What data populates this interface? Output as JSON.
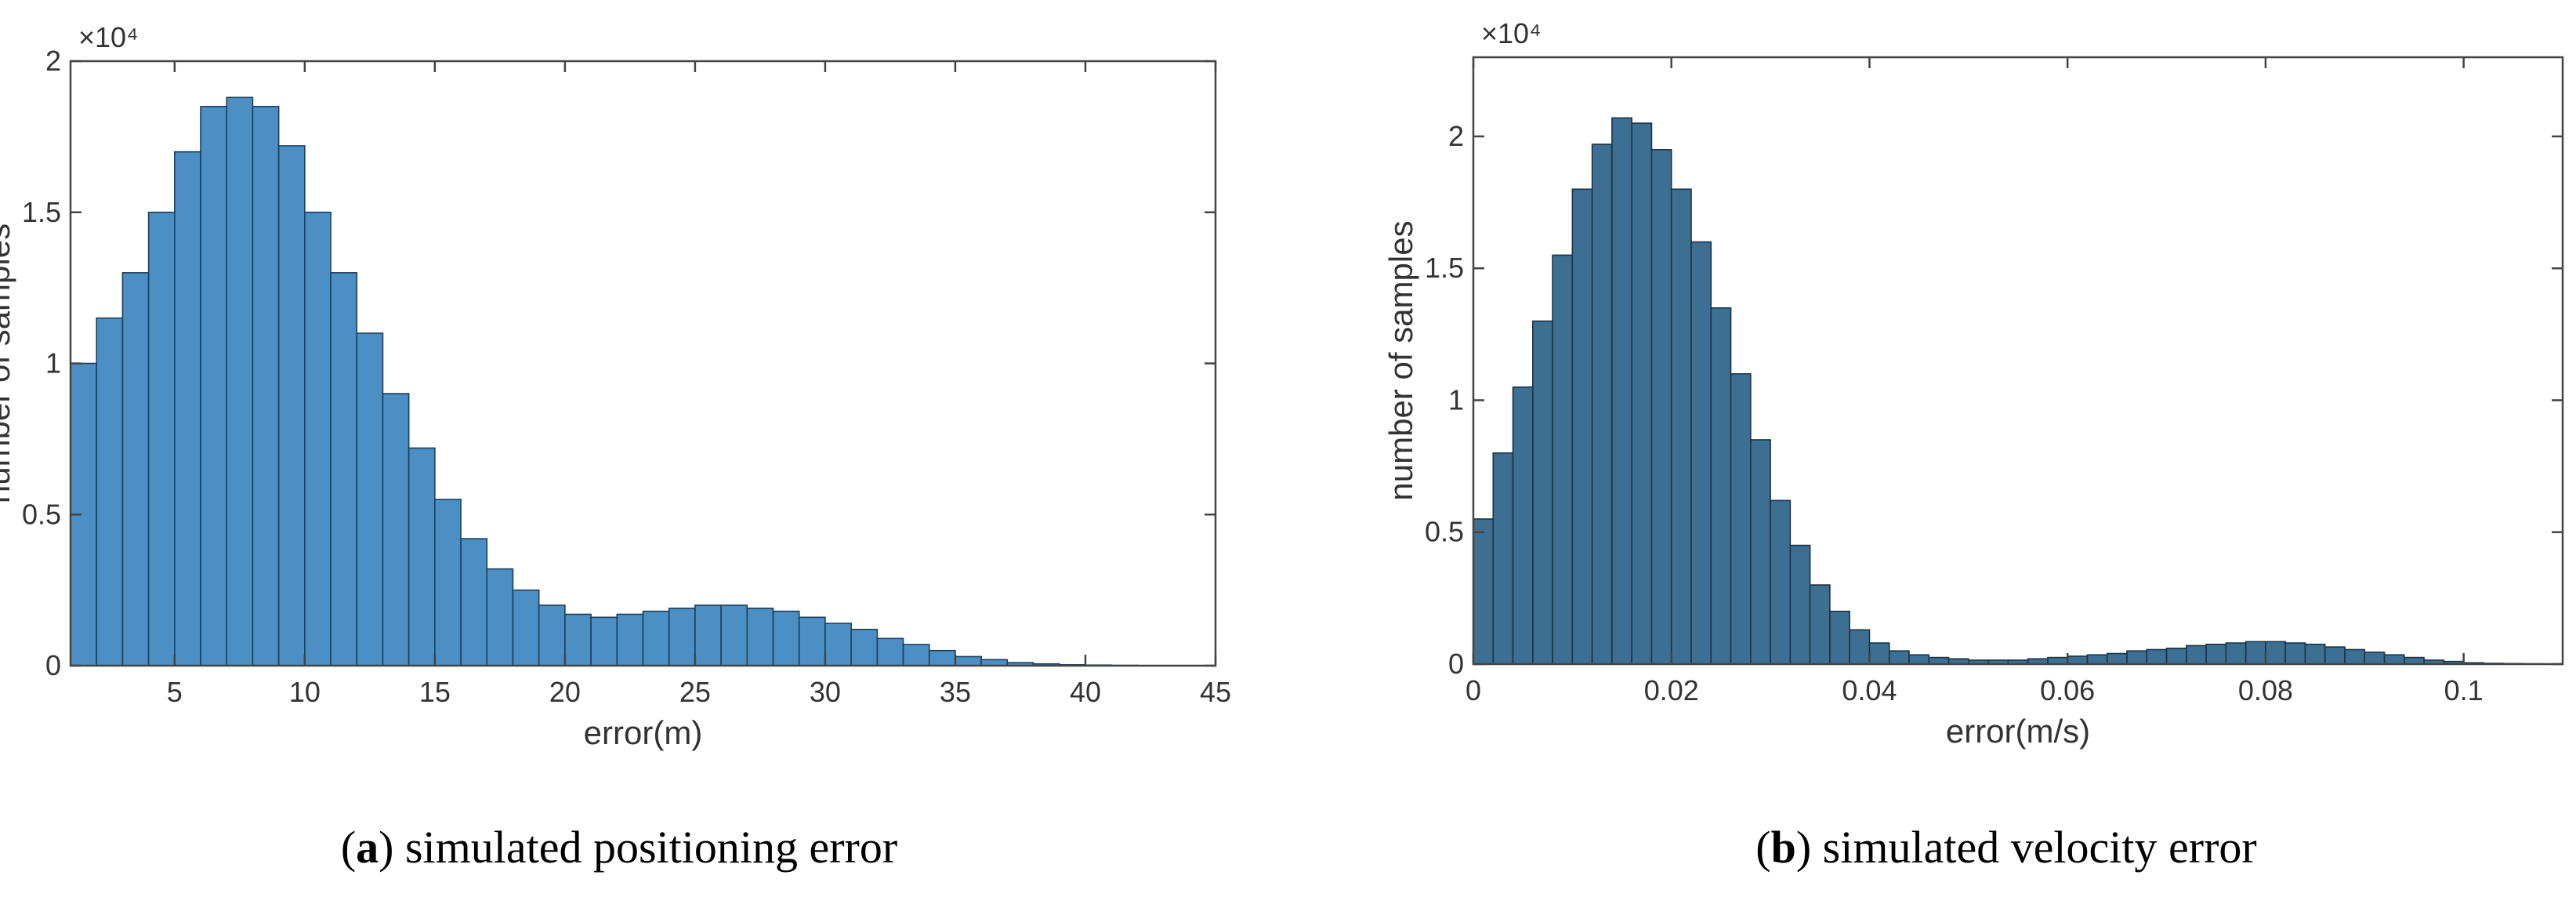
{
  "chart_data": [
    {
      "type": "histogram",
      "caption": [
        "(",
        "a",
        ") simulated positioning error"
      ],
      "xlabel": "error(m)",
      "ylabel": "number of samples",
      "y_multiplier": "×10⁴",
      "color": "#4b8fc4",
      "edgecolor": "#1d3f5a",
      "xlim": [
        1,
        45
      ],
      "xticks": [
        5,
        10,
        15,
        20,
        25,
        30,
        35,
        40,
        45
      ],
      "ylim": [
        0,
        2
      ],
      "yticks": [
        0,
        0.5,
        1,
        1.5,
        2
      ],
      "bins": [
        1,
        2,
        3,
        4,
        5,
        6,
        7,
        8,
        9,
        10,
        11,
        12,
        13,
        14,
        15,
        16,
        17,
        18,
        19,
        20,
        21,
        22,
        23,
        24,
        25,
        26,
        27,
        28,
        29,
        30,
        31,
        32,
        33,
        34,
        35,
        36,
        37,
        38,
        39,
        40,
        41,
        42,
        43
      ],
      "counts": [
        1.0,
        1.15,
        1.3,
        1.5,
        1.7,
        1.85,
        1.88,
        1.85,
        1.72,
        1.5,
        1.3,
        1.1,
        0.9,
        0.72,
        0.55,
        0.42,
        0.32,
        0.25,
        0.2,
        0.17,
        0.16,
        0.17,
        0.18,
        0.19,
        0.2,
        0.2,
        0.19,
        0.18,
        0.16,
        0.14,
        0.12,
        0.09,
        0.07,
        0.05,
        0.03,
        0.02,
        0.01,
        0.006,
        0.003,
        0.002,
        0.001,
        0.0
      ]
    },
    {
      "type": "histogram",
      "caption": [
        "(",
        "b",
        ") simulated velocity error"
      ],
      "xlabel": "error(m/s)",
      "ylabel": "number of samples",
      "y_multiplier": "×10⁴",
      "color": "#3d6f92",
      "edgecolor": "#1a3447",
      "xlim": [
        0,
        0.11
      ],
      "xticks": [
        0,
        0.02,
        0.04,
        0.06,
        0.08,
        0.1
      ],
      "ylim": [
        0,
        2.3
      ],
      "yticks": [
        0,
        0.5,
        1,
        1.5,
        2
      ],
      "bins": [
        0,
        0.002,
        0.004,
        0.006,
        0.008,
        0.01,
        0.012,
        0.014,
        0.016,
        0.018,
        0.02,
        0.022,
        0.024,
        0.026,
        0.028,
        0.03,
        0.032,
        0.034,
        0.036,
        0.038,
        0.04,
        0.042,
        0.044,
        0.046,
        0.048,
        0.05,
        0.052,
        0.054,
        0.056,
        0.058,
        0.06,
        0.062,
        0.064,
        0.066,
        0.068,
        0.07,
        0.072,
        0.074,
        0.076,
        0.078,
        0.08,
        0.082,
        0.084,
        0.086,
        0.088,
        0.09,
        0.092,
        0.094,
        0.096,
        0.098,
        0.1,
        0.102,
        0.104,
        0.106,
        0.108,
        0.11
      ],
      "counts": [
        0.55,
        0.8,
        1.05,
        1.3,
        1.55,
        1.8,
        1.97,
        2.07,
        2.05,
        1.95,
        1.8,
        1.6,
        1.35,
        1.1,
        0.85,
        0.62,
        0.45,
        0.3,
        0.2,
        0.13,
        0.08,
        0.05,
        0.035,
        0.025,
        0.02,
        0.015,
        0.015,
        0.015,
        0.02,
        0.025,
        0.03,
        0.035,
        0.04,
        0.05,
        0.055,
        0.06,
        0.07,
        0.075,
        0.08,
        0.085,
        0.085,
        0.08,
        0.075,
        0.065,
        0.055,
        0.045,
        0.035,
        0.025,
        0.015,
        0.01,
        0.005,
        0.003,
        0.002,
        0.001,
        0
      ]
    }
  ]
}
